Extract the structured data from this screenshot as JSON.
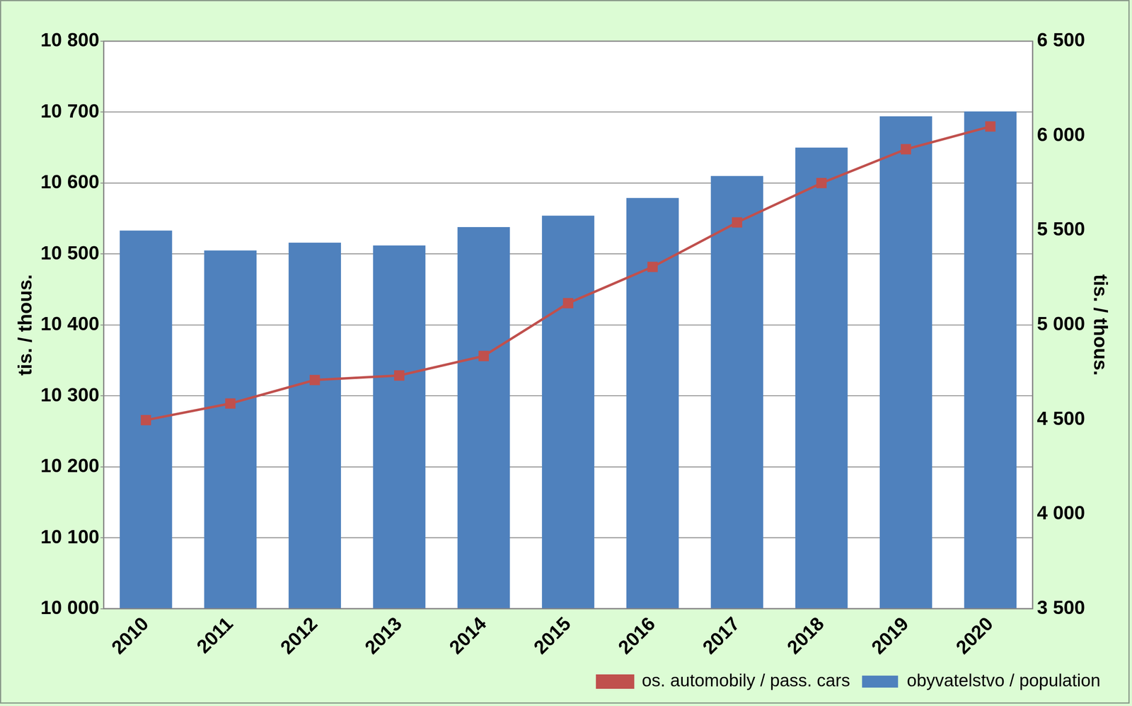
{
  "chart_data": {
    "type": "bar",
    "categories": [
      "2010",
      "2011",
      "2012",
      "2013",
      "2014",
      "2015",
      "2016",
      "2017",
      "2018",
      "2019",
      "2020"
    ],
    "series": [
      {
        "name": "obyvatelstvo / population",
        "type": "bar",
        "color": "#4f81bd",
        "values": [
          10533,
          10505,
          10516,
          10512,
          10538,
          10554,
          10579,
          10610,
          10650,
          10694,
          10701
        ]
      },
      {
        "name": "os. automobily / pass. cars",
        "type": "line",
        "axis": "y2",
        "color": "#c0504d",
        "marker": "square",
        "values": [
          4497,
          4585,
          4709,
          4733,
          4836,
          5115,
          5307,
          5542,
          5750,
          5929,
          6049
        ]
      }
    ],
    "ylim": [
      10000,
      10800
    ],
    "yticks": [
      {
        "value": 10000,
        "label": "10 000"
      },
      {
        "value": 10100,
        "label": "10 100"
      },
      {
        "value": 10200,
        "label": "10 200"
      },
      {
        "value": 10300,
        "label": "10 300"
      },
      {
        "value": 10400,
        "label": "10 400"
      },
      {
        "value": 10500,
        "label": "10 500"
      },
      {
        "value": 10600,
        "label": "10 600"
      },
      {
        "value": 10700,
        "label": "10 700"
      },
      {
        "value": 10800,
        "label": "10 800"
      }
    ],
    "y2lim": [
      3500,
      6500
    ],
    "y2ticks": [
      {
        "value": 3500,
        "label": "3 500"
      },
      {
        "value": 4000,
        "label": "4 000"
      },
      {
        "value": 4500,
        "label": "4 500"
      },
      {
        "value": 5000,
        "label": "5 000"
      },
      {
        "value": 5500,
        "label": "5 500"
      },
      {
        "value": 6000,
        "label": "6 000"
      },
      {
        "value": 6500,
        "label": "6 500"
      }
    ],
    "ylabel": "tis. / thous.",
    "y2label": "tis. / thous.",
    "grid": true,
    "legend": "lower right"
  }
}
